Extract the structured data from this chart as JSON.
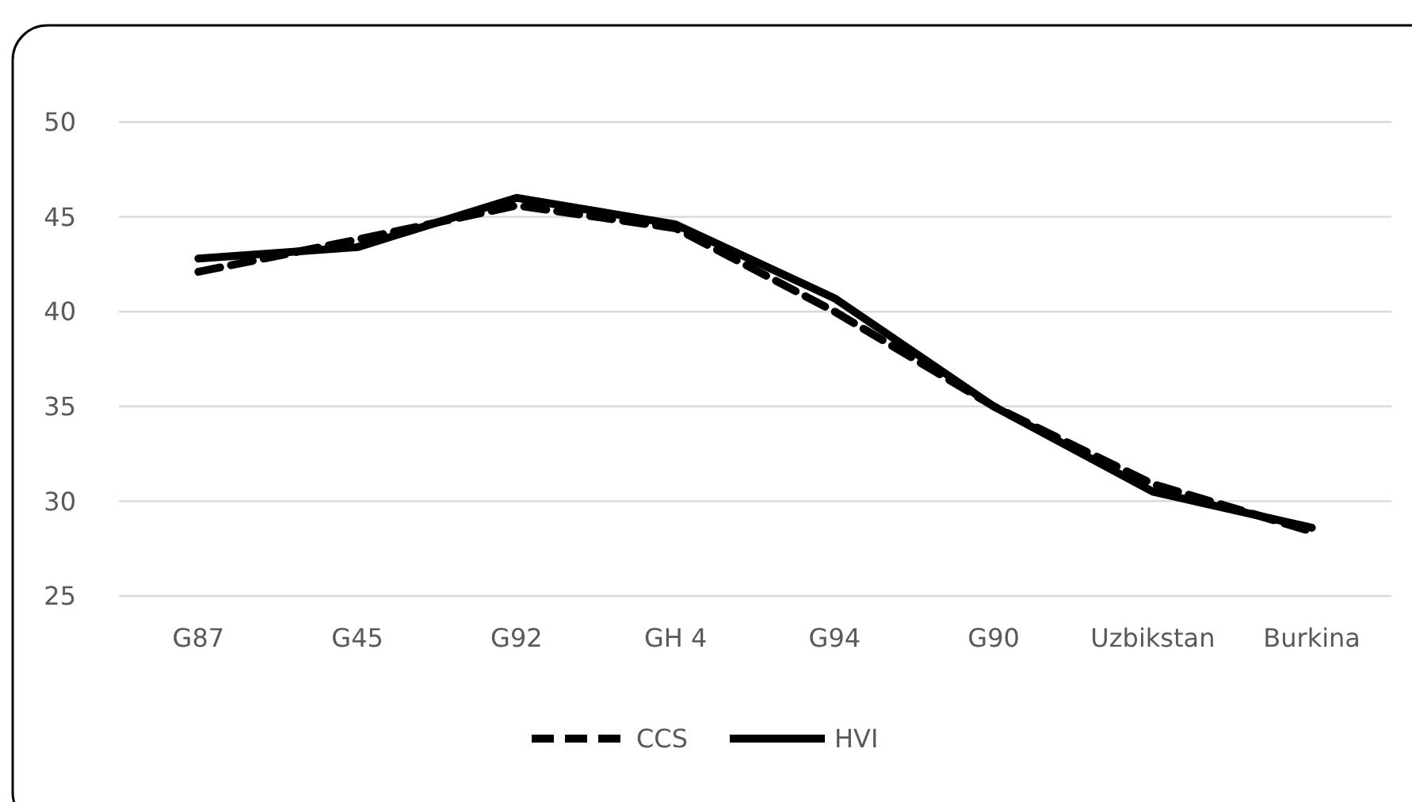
{
  "chart_data": {
    "type": "line",
    "categories": [
      "G87",
      "G45",
      "G92",
      "GH 4",
      "G94",
      "G90",
      "Uzbikstan",
      "Burkina"
    ],
    "series": [
      {
        "name": "CCS",
        "color": "#000000",
        "line_style": "dashed",
        "values": [
          42.1,
          43.8,
          45.6,
          44.4,
          40.0,
          35.0,
          30.9,
          28.4
        ]
      },
      {
        "name": "HVI",
        "color": "#000000",
        "line_style": "solid",
        "values": [
          42.8,
          43.4,
          46.0,
          44.6,
          40.7,
          35.0,
          30.5,
          28.6
        ]
      }
    ],
    "ylim": [
      25,
      50
    ],
    "yticks": [
      25,
      30,
      35,
      40,
      45,
      50
    ],
    "grid": "y",
    "legend": "bottom"
  }
}
